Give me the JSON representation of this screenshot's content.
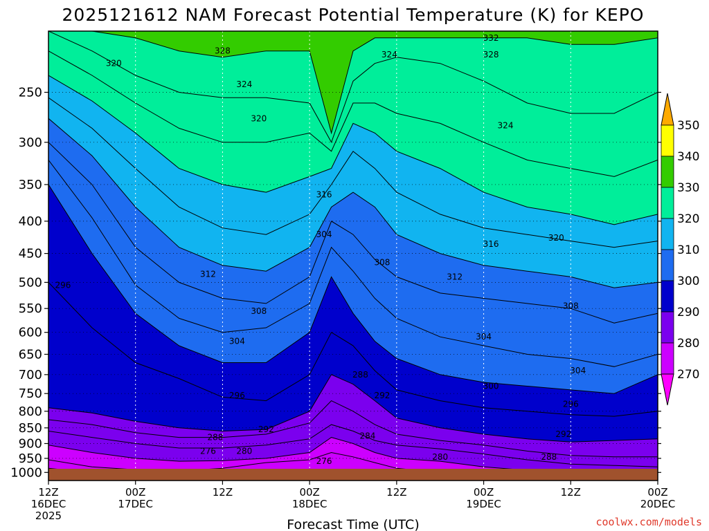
{
  "chart_data": {
    "type": "heatmap",
    "title": "2025121612 NAM Forecast Potential Temperature (K) for KEPO",
    "xlabel": "Forecast Time (UTC)",
    "ylabel": "",
    "credit": "coolwx.com/models",
    "y_ticks": [
      "250",
      "300",
      "350",
      "400",
      "450",
      "500",
      "550",
      "600",
      "650",
      "700",
      "750",
      "800",
      "850",
      "900",
      "950",
      "1000"
    ],
    "y_tick_values": [
      250,
      300,
      350,
      400,
      450,
      500,
      550,
      600,
      650,
      700,
      750,
      800,
      850,
      900,
      950,
      1000
    ],
    "x_ticks": [
      {
        "hour": 0,
        "line1": "12Z",
        "line2": "16DEC",
        "line3": "2025"
      },
      {
        "hour": 12,
        "line1": "00Z",
        "line2": "17DEC",
        "line3": ""
      },
      {
        "hour": 24,
        "line1": "12Z",
        "line2": "",
        "line3": ""
      },
      {
        "hour": 36,
        "line1": "00Z",
        "line2": "18DEC",
        "line3": ""
      },
      {
        "hour": 48,
        "line1": "12Z",
        "line2": "",
        "line3": ""
      },
      {
        "hour": 60,
        "line1": "00Z",
        "line2": "19DEC",
        "line3": ""
      },
      {
        "hour": 72,
        "line1": "12Z",
        "line2": "",
        "line3": ""
      },
      {
        "hour": 84,
        "line1": "00Z",
        "line2": "20DEC",
        "line3": ""
      }
    ],
    "x_range_hours": [
      0,
      84
    ],
    "y_range_hpa": [
      200,
      1030
    ],
    "y_scale": "log",
    "grid": true,
    "colorbar": {
      "levels": [
        270,
        280,
        290,
        300,
        310,
        320,
        330,
        340,
        350
      ],
      "labels": [
        "270",
        "280",
        "290",
        "300",
        "310",
        "320",
        "330",
        "340",
        "350"
      ],
      "colors": [
        "#ff00ff",
        "#cc00ff",
        "#7b00ee",
        "#0000cc",
        "#1e6cf0",
        "#11b4f0",
        "#00ee9a",
        "#33cc00",
        "#ffff00",
        "#ffaa00"
      ],
      "position": "right"
    },
    "hours": [
      0,
      6,
      12,
      18,
      24,
      30,
      36,
      39,
      42,
      45,
      48,
      54,
      60,
      66,
      72,
      78,
      84
    ],
    "isentrope_pressure_hpa": {
      "270": [
        1000,
        1000,
        1000,
        1000,
        1000,
        1000,
        1000,
        1000,
        1000,
        1000,
        1000,
        1000,
        1000,
        1000,
        1000,
        1000,
        1000
      ],
      "274": [
        985,
        1000,
        1000,
        1000,
        1000,
        1000,
        1000,
        1000,
        1000,
        1000,
        1000,
        1000,
        1000,
        1000,
        1000,
        1000,
        1000
      ],
      "276": [
        955,
        980,
        990,
        995,
        985,
        965,
        955,
        930,
        945,
        965,
        985,
        1000,
        1000,
        1000,
        1000,
        1000,
        1000
      ],
      "280": [
        905,
        930,
        950,
        960,
        958,
        950,
        930,
        880,
        900,
        930,
        950,
        960,
        980,
        992,
        1000,
        1000,
        1000
      ],
      "284": [
        860,
        880,
        900,
        915,
        915,
        905,
        885,
        840,
        860,
        890,
        905,
        918,
        935,
        955,
        970,
        975,
        980
      ],
      "288": [
        825,
        840,
        865,
        880,
        880,
        870,
        835,
        770,
        800,
        840,
        870,
        890,
        905,
        925,
        940,
        945,
        945
      ],
      "292": [
        790,
        805,
        830,
        850,
        860,
        855,
        800,
        700,
        725,
        770,
        820,
        850,
        870,
        885,
        895,
        890,
        885
      ],
      "296": [
        500,
        590,
        670,
        710,
        760,
        770,
        700,
        600,
        630,
        690,
        740,
        770,
        790,
        800,
        810,
        815,
        800
      ],
      "300": [
        350,
        450,
        560,
        630,
        670,
        670,
        600,
        490,
        560,
        620,
        660,
        700,
        720,
        730,
        740,
        750,
        700
      ],
      "304": [
        320,
        395,
        505,
        570,
        600,
        590,
        540,
        440,
        480,
        530,
        570,
        610,
        630,
        650,
        660,
        680,
        650
      ],
      "308": [
        300,
        350,
        440,
        500,
        530,
        540,
        490,
        400,
        420,
        460,
        490,
        520,
        530,
        540,
        550,
        580,
        560
      ],
      "312": [
        275,
        315,
        380,
        440,
        470,
        480,
        440,
        380,
        360,
        380,
        420,
        450,
        470,
        480,
        490,
        510,
        500
      ],
      "316": [
        255,
        285,
        330,
        380,
        410,
        420,
        390,
        350,
        310,
        330,
        360,
        390,
        410,
        420,
        430,
        440,
        430
      ],
      "320": [
        235,
        258,
        290,
        330,
        350,
        360,
        340,
        330,
        280,
        290,
        310,
        330,
        360,
        380,
        390,
        405,
        390
      ],
      "324": [
        215,
        235,
        260,
        285,
        300,
        300,
        290,
        310,
        260,
        260,
        270,
        280,
        300,
        320,
        330,
        340,
        320
      ],
      "328": [
        200,
        215,
        235,
        250,
        255,
        255,
        260,
        300,
        240,
        225,
        220,
        225,
        240,
        260,
        270,
        270,
        250
      ],
      "332": [
        200,
        200,
        205,
        215,
        220,
        215,
        215,
        290,
        215,
        205,
        205,
        205,
        205,
        205,
        210,
        210,
        205
      ]
    },
    "contour_labels": [
      {
        "text": "328",
        "hour": 24,
        "p": 215
      },
      {
        "text": "320",
        "hour": 9,
        "p": 225
      },
      {
        "text": "324",
        "hour": 27,
        "p": 243
      },
      {
        "text": "320",
        "hour": 29,
        "p": 275
      },
      {
        "text": "324",
        "hour": 47,
        "p": 218
      },
      {
        "text": "328",
        "hour": 61,
        "p": 218
      },
      {
        "text": "332",
        "hour": 61,
        "p": 205
      },
      {
        "text": "324",
        "hour": 63,
        "p": 282
      },
      {
        "text": "316",
        "hour": 38,
        "p": 363
      },
      {
        "text": "304",
        "hour": 38,
        "p": 420
      },
      {
        "text": "308",
        "hour": 46,
        "p": 465
      },
      {
        "text": "316",
        "hour": 61,
        "p": 435
      },
      {
        "text": "320",
        "hour": 70,
        "p": 425
      },
      {
        "text": "312",
        "hour": 22,
        "p": 485
      },
      {
        "text": "312",
        "hour": 56,
        "p": 490
      },
      {
        "text": "296",
        "hour": 2,
        "p": 505
      },
      {
        "text": "308",
        "hour": 29,
        "p": 555
      },
      {
        "text": "308",
        "hour": 72,
        "p": 545
      },
      {
        "text": "304",
        "hour": 26,
        "p": 620
      },
      {
        "text": "304",
        "hour": 60,
        "p": 610
      },
      {
        "text": "304",
        "hour": 73,
        "p": 690
      },
      {
        "text": "288",
        "hour": 43,
        "p": 700
      },
      {
        "text": "300",
        "hour": 61,
        "p": 730
      },
      {
        "text": "292",
        "hour": 46,
        "p": 755
      },
      {
        "text": "296",
        "hour": 26,
        "p": 755
      },
      {
        "text": "296",
        "hour": 72,
        "p": 780
      },
      {
        "text": "292",
        "hour": 30,
        "p": 855
      },
      {
        "text": "292",
        "hour": 71,
        "p": 870
      },
      {
        "text": "288",
        "hour": 23,
        "p": 880
      },
      {
        "text": "284",
        "hour": 44,
        "p": 875
      },
      {
        "text": "276",
        "hour": 22,
        "p": 925
      },
      {
        "text": "280",
        "hour": 27,
        "p": 925
      },
      {
        "text": "280",
        "hour": 54,
        "p": 945
      },
      {
        "text": "288",
        "hour": 69,
        "p": 945
      },
      {
        "text": "276",
        "hour": 38,
        "p": 960
      }
    ]
  }
}
